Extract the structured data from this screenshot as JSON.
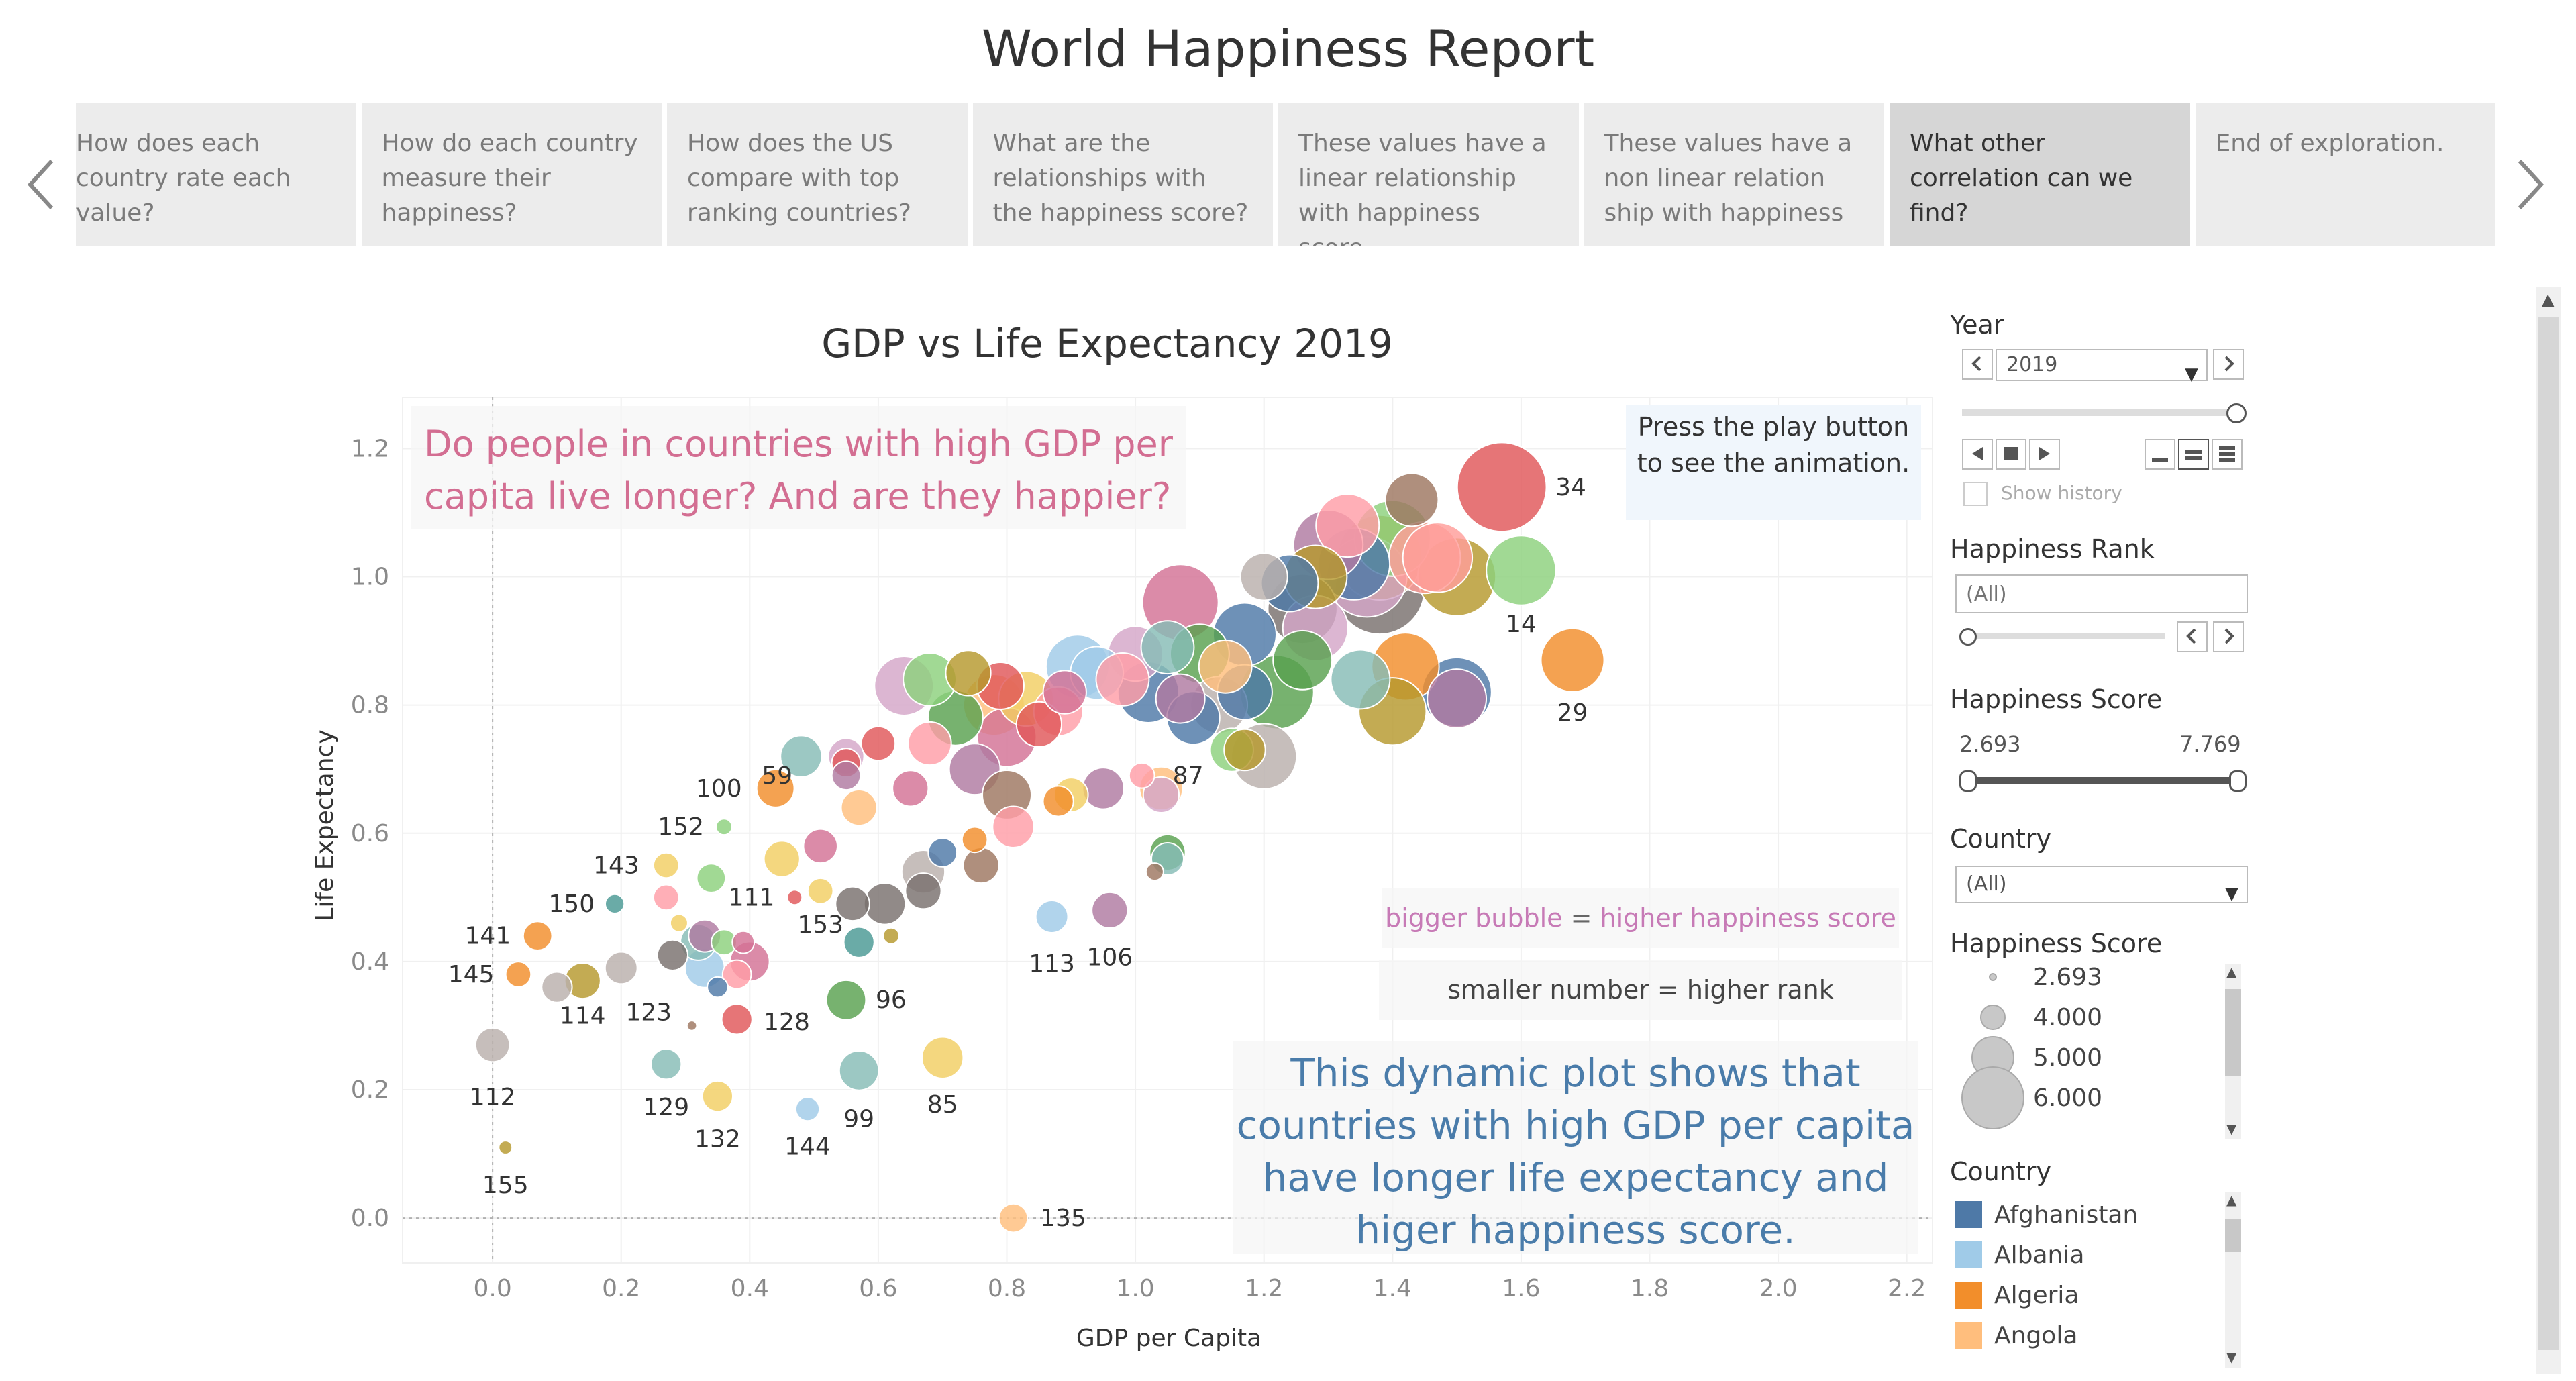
{
  "dashboard_title": "World Happiness Report",
  "story": {
    "prev_icon": "chevron-left-icon",
    "next_icon": "chevron-right-icon",
    "tabs": [
      {
        "label": "How does each country rate each value?"
      },
      {
        "label": "How do each country measure their happiness?"
      },
      {
        "label": "How does the US compare with top ranking countries?"
      },
      {
        "label": "What are the relationships with the happiness score?"
      },
      {
        "label": "These values have a linear relationship with happiness score."
      },
      {
        "label": "These values have a non linear relation ship with happiness"
      },
      {
        "label": "What other correlation can we find?",
        "active": true
      },
      {
        "label": "End of exploration."
      }
    ]
  },
  "annotations": {
    "question": "Do people in countries with high GDP per capita live longer? And are they happier?",
    "play_hint": "Press the play button to see the animation.",
    "bubble_note_a": "bigger bubble",
    "bubble_note_eq": " = ",
    "bubble_note_b": "higher happiness score",
    "rank_note": "smaller number = higher rank",
    "conclusion": "This dynamic plot shows that countries with high GDP per capita have longer life expectancy and higer happiness score."
  },
  "chart_data": {
    "type": "scatter",
    "title": "GDP vs Life Expectancy  2019",
    "xlabel": "GDP per Capita",
    "ylabel": "Life Expectancy",
    "xlim": [
      -0.14,
      2.24
    ],
    "ylim": [
      -0.07,
      1.28
    ],
    "x_ticks": [
      "0.0",
      "0.2",
      "0.4",
      "0.6",
      "0.8",
      "1.0",
      "1.2",
      "1.4",
      "1.6",
      "1.8",
      "2.0",
      "2.2"
    ],
    "y_ticks": [
      "0.0",
      "0.2",
      "0.4",
      "0.6",
      "0.8",
      "1.0",
      "1.2"
    ],
    "grid": true,
    "size_encoding": "Happiness Score",
    "color_encoding": "Country",
    "points": [
      {
        "x": 1.57,
        "y": 1.14,
        "score": 7.2,
        "color": "#e15759",
        "label": "34"
      },
      {
        "x": 1.6,
        "y": 1.01,
        "score": 6.3,
        "color": "#8cd17d",
        "label": "14"
      },
      {
        "x": 1.68,
        "y": 0.87,
        "score": 6.0,
        "color": "#f28e2b",
        "label": "29"
      },
      {
        "x": 1.43,
        "y": 1.12,
        "score": 5.5,
        "color": "#9d7660"
      },
      {
        "x": 1.33,
        "y": 1.08,
        "score": 6.0,
        "color": "#ff9da7"
      },
      {
        "x": 1.4,
        "y": 1.06,
        "score": 6.6,
        "color": "#8cd17d"
      },
      {
        "x": 1.45,
        "y": 1.03,
        "score": 6.4,
        "color": "#ff9d9a"
      },
      {
        "x": 1.36,
        "y": 1.0,
        "score": 6.8,
        "color": "#d4a6c8"
      },
      {
        "x": 1.38,
        "y": 0.98,
        "score": 7.2,
        "color": "#79706e"
      },
      {
        "x": 1.34,
        "y": 1.02,
        "score": 6.4,
        "color": "#4e79a7"
      },
      {
        "x": 1.3,
        "y": 1.05,
        "score": 6.3,
        "color": "#b07aa1"
      },
      {
        "x": 1.28,
        "y": 1.0,
        "score": 6.0,
        "color": "#b6992d"
      },
      {
        "x": 1.5,
        "y": 1.0,
        "score": 6.7,
        "color": "#b6992d"
      },
      {
        "x": 1.47,
        "y": 1.03,
        "score": 6.3,
        "color": "#ff9d9a"
      },
      {
        "x": 1.38,
        "y": 1.03,
        "score": 7.0,
        "color": "#b6992d"
      },
      {
        "x": 1.2,
        "y": 1.0,
        "score": 5.2,
        "color": "#bab0ac"
      },
      {
        "x": 1.24,
        "y": 0.99,
        "score": 5.7,
        "color": "#4e79a7"
      },
      {
        "x": 1.26,
        "y": 0.95,
        "score": 6.3,
        "color": "#79706e"
      },
      {
        "x": 1.28,
        "y": 0.92,
        "score": 6.1,
        "color": "#d4a6c8"
      },
      {
        "x": 1.17,
        "y": 0.91,
        "score": 6.0,
        "color": "#4e79a7"
      },
      {
        "x": 1.07,
        "y": 0.96,
        "score": 6.6,
        "color": "#d37295"
      },
      {
        "x": 1.35,
        "y": 0.84,
        "score": 5.8,
        "color": "#86bcb6"
      },
      {
        "x": 1.42,
        "y": 0.86,
        "score": 6.2,
        "color": "#f28e2b"
      },
      {
        "x": 1.5,
        "y": 0.82,
        "score": 6.3,
        "color": "#4e79a7"
      },
      {
        "x": 1.5,
        "y": 0.81,
        "score": 5.8,
        "color": "#b07aa1"
      },
      {
        "x": 1.4,
        "y": 0.79,
        "score": 6.2,
        "color": "#b6992d"
      },
      {
        "x": 1.26,
        "y": 0.87,
        "score": 5.8,
        "color": "#59a14f"
      },
      {
        "x": 1.22,
        "y": 0.82,
        "score": 6.5,
        "color": "#59a14f"
      },
      {
        "x": 1.17,
        "y": 0.82,
        "score": 5.6,
        "color": "#4e79a7"
      },
      {
        "x": 1.14,
        "y": 0.86,
        "score": 5.5,
        "color": "#ffbe7d"
      },
      {
        "x": 1.1,
        "y": 0.88,
        "score": 5.8,
        "color": "#59a14f"
      },
      {
        "x": 1.05,
        "y": 0.89,
        "score": 5.5,
        "color": "#86bcb6"
      },
      {
        "x": 1.0,
        "y": 0.88,
        "score": 5.6,
        "color": "#d4a6c8"
      },
      {
        "x": 0.91,
        "y": 0.86,
        "score": 6.0,
        "color": "#a0cbe8"
      },
      {
        "x": 0.94,
        "y": 0.85,
        "score": 5.5,
        "color": "#a0cbe8"
      },
      {
        "x": 0.98,
        "y": 0.84,
        "score": 5.5,
        "color": "#ff9da7"
      },
      {
        "x": 1.02,
        "y": 0.82,
        "score": 5.9,
        "color": "#4e79a7"
      },
      {
        "x": 1.07,
        "y": 0.81,
        "score": 5.3,
        "color": "#b07aa1"
      },
      {
        "x": 1.13,
        "y": 0.8,
        "score": 5.7,
        "color": "#bab0ac"
      },
      {
        "x": 1.09,
        "y": 0.78,
        "score": 5.5,
        "color": "#4e79a7"
      },
      {
        "x": 1.15,
        "y": 0.73,
        "score": 5.0,
        "color": "#8cd17d"
      },
      {
        "x": 1.2,
        "y": 0.72,
        "score": 6.1,
        "color": "#bab0ac"
      },
      {
        "x": 1.17,
        "y": 0.73,
        "score": 4.9,
        "color": "#b6992d"
      },
      {
        "x": 0.88,
        "y": 0.79,
        "score": 5.3,
        "color": "#ff9da7"
      },
      {
        "x": 0.83,
        "y": 0.81,
        "score": 5.6,
        "color": "#f1ce63"
      },
      {
        "x": 0.78,
        "y": 0.8,
        "score": 5.9,
        "color": "#ffbe7d"
      },
      {
        "x": 0.85,
        "y": 0.77,
        "score": 5.1,
        "color": "#e15759"
      },
      {
        "x": 0.89,
        "y": 0.82,
        "score": 5.0,
        "color": "#d37295"
      },
      {
        "x": 0.79,
        "y": 0.83,
        "score": 5.2,
        "color": "#e15759"
      },
      {
        "x": 0.74,
        "y": 0.85,
        "score": 5.1,
        "color": "#b6992d"
      },
      {
        "x": 0.68,
        "y": 0.84,
        "score": 5.5,
        "color": "#8cd17d"
      },
      {
        "x": 0.64,
        "y": 0.83,
        "score": 5.8,
        "color": "#d4a6c8"
      },
      {
        "x": 0.72,
        "y": 0.78,
        "score": 5.6,
        "color": "#59a14f"
      },
      {
        "x": 0.8,
        "y": 0.75,
        "score": 5.8,
        "color": "#d37295"
      },
      {
        "x": 0.75,
        "y": 0.7,
        "score": 5.4,
        "color": "#b07aa1"
      },
      {
        "x": 0.8,
        "y": 0.66,
        "score": 5.3,
        "color": "#9d7660"
      },
      {
        "x": 0.81,
        "y": 0.61,
        "score": 4.9,
        "color": "#ff9da7"
      },
      {
        "x": 0.68,
        "y": 0.74,
        "score": 5.0,
        "color": "#ff9da7"
      },
      {
        "x": 0.6,
        "y": 0.74,
        "score": 4.5,
        "color": "#e15759"
      },
      {
        "x": 0.55,
        "y": 0.72,
        "score": 4.6,
        "color": "#d4a6c8"
      },
      {
        "x": 0.48,
        "y": 0.72,
        "score": 4.9,
        "color": "#86bcb6"
      },
      {
        "x": 0.55,
        "y": 0.71,
        "score": 4.2,
        "color": "#e15759"
      },
      {
        "x": 0.65,
        "y": 0.67,
        "score": 4.6,
        "color": "#d37295"
      },
      {
        "x": 0.57,
        "y": 0.64,
        "score": 4.6,
        "color": "#ffbe7d"
      },
      {
        "x": 0.9,
        "y": 0.66,
        "score": 4.5,
        "color": "#f1ce63"
      },
      {
        "x": 0.95,
        "y": 0.67,
        "score": 4.9,
        "color": "#b07aa1"
      },
      {
        "x": 1.04,
        "y": 0.67,
        "score": 5.0,
        "color": "#ffbe7d"
      },
      {
        "x": 1.04,
        "y": 0.66,
        "score": 4.6,
        "color": "#d4a6c8"
      },
      {
        "x": 0.88,
        "y": 0.65,
        "score": 4.3,
        "color": "#f28e2b"
      },
      {
        "x": 1.05,
        "y": 0.57,
        "score": 4.6,
        "color": "#59a14f"
      },
      {
        "x": 1.05,
        "y": 0.56,
        "score": 4.4,
        "color": "#86bcb6"
      },
      {
        "x": 1.03,
        "y": 0.54,
        "score": 3.5,
        "color": "#9d7660"
      },
      {
        "x": 0.75,
        "y": 0.59,
        "score": 4.0,
        "color": "#f28e2b"
      },
      {
        "x": 0.76,
        "y": 0.55,
        "score": 4.6,
        "color": "#9d7660"
      },
      {
        "x": 0.7,
        "y": 0.57,
        "score": 4.2,
        "color": "#4e79a7"
      },
      {
        "x": 0.67,
        "y": 0.54,
        "score": 5.0,
        "color": "#bab0ac"
      },
      {
        "x": 0.67,
        "y": 0.51,
        "score": 4.6,
        "color": "#79706e"
      },
      {
        "x": 0.61,
        "y": 0.49,
        "score": 4.9,
        "color": "#79706e"
      },
      {
        "x": 0.56,
        "y": 0.49,
        "score": 4.5,
        "color": "#79706e"
      },
      {
        "x": 0.62,
        "y": 0.44,
        "score": 3.4,
        "color": "#b6992d"
      },
      {
        "x": 0.57,
        "y": 0.43,
        "score": 4.3,
        "color": "#499894"
      },
      {
        "x": 0.51,
        "y": 0.58,
        "score": 4.5,
        "color": "#d37295"
      },
      {
        "x": 0.45,
        "y": 0.56,
        "score": 4.6,
        "color": "#f1ce63"
      },
      {
        "x": 0.44,
        "y": 0.67,
        "score": 4.7,
        "color": "#f28e2b",
        "label": "100"
      },
      {
        "x": 0.36,
        "y": 0.61,
        "score": 3.4,
        "color": "#8cd17d",
        "label": "152"
      },
      {
        "x": 0.34,
        "y": 0.53,
        "score": 4.2,
        "color": "#8cd17d"
      },
      {
        "x": 0.27,
        "y": 0.55,
        "score": 4.0,
        "color": "#f1ce63",
        "label": "143"
      },
      {
        "x": 0.27,
        "y": 0.5,
        "score": 4.0,
        "color": "#ff9da7"
      },
      {
        "x": 0.19,
        "y": 0.49,
        "score": 3.6,
        "color": "#499894",
        "label": "150"
      },
      {
        "x": 0.47,
        "y": 0.5,
        "score": 3.3,
        "color": "#e15759",
        "label": "111"
      },
      {
        "x": 0.29,
        "y": 0.46,
        "score": 3.5,
        "color": "#f1ce63"
      },
      {
        "x": 0.32,
        "y": 0.43,
        "score": 4.6,
        "color": "#86bcb6"
      },
      {
        "x": 0.33,
        "y": 0.44,
        "score": 4.4,
        "color": "#b07aa1"
      },
      {
        "x": 0.36,
        "y": 0.43,
        "score": 4.0,
        "color": "#8cd17d"
      },
      {
        "x": 0.39,
        "y": 0.43,
        "score": 3.8,
        "color": "#d37295"
      },
      {
        "x": 0.28,
        "y": 0.41,
        "score": 4.3,
        "color": "#79706e"
      },
      {
        "x": 0.33,
        "y": 0.39,
        "score": 4.8,
        "color": "#a0cbe8"
      },
      {
        "x": 0.38,
        "y": 0.38,
        "score": 4.2,
        "color": "#ff9da7"
      },
      {
        "x": 0.4,
        "y": 0.4,
        "score": 4.8,
        "color": "#d37295"
      },
      {
        "x": 0.35,
        "y": 0.36,
        "score": 3.7,
        "color": "#4e79a7"
      },
      {
        "x": 0.2,
        "y": 0.39,
        "score": 4.4,
        "color": "#bab0ac"
      },
      {
        "x": 0.14,
        "y": 0.37,
        "score": 4.6,
        "color": "#b6992d",
        "label": "114"
      },
      {
        "x": 0.1,
        "y": 0.36,
        "score": 4.3,
        "color": "#bab0ac"
      },
      {
        "x": 0.07,
        "y": 0.44,
        "score": 4.2,
        "color": "#f28e2b",
        "label": "141"
      },
      {
        "x": 0.04,
        "y": 0.38,
        "score": 4.0,
        "color": "#f28e2b",
        "label": "145"
      },
      {
        "x": 0.0,
        "y": 0.27,
        "score": 4.5,
        "color": "#bab0ac",
        "label": "112"
      },
      {
        "x": 0.02,
        "y": 0.11,
        "score": 3.2,
        "color": "#b6992d",
        "label": "155"
      },
      {
        "x": 0.31,
        "y": 0.3,
        "score": 2.9,
        "color": "#9d7660",
        "label": "123"
      },
      {
        "x": 0.38,
        "y": 0.31,
        "score": 4.3,
        "color": "#e15759",
        "label": "128"
      },
      {
        "x": 0.27,
        "y": 0.24,
        "score": 4.3,
        "color": "#86bcb6",
        "label": "129"
      },
      {
        "x": 0.35,
        "y": 0.19,
        "score": 4.3,
        "color": "#f1ce63",
        "label": "132"
      },
      {
        "x": 0.49,
        "y": 0.17,
        "score": 3.9,
        "color": "#a0cbe8",
        "label": "144"
      },
      {
        "x": 0.55,
        "y": 0.34,
        "score": 4.8,
        "color": "#59a14f",
        "label": "96"
      },
      {
        "x": 0.57,
        "y": 0.23,
        "score": 4.8,
        "color": "#86bcb6",
        "label": "99"
      },
      {
        "x": 0.7,
        "y": 0.25,
        "score": 4.9,
        "color": "#f1ce63",
        "label": "85"
      },
      {
        "x": 0.81,
        "y": 0.0,
        "score": 4.2,
        "color": "#ffbe7d",
        "label": "135"
      },
      {
        "x": 0.87,
        "y": 0.47,
        "score": 4.4,
        "color": "#a0cbe8",
        "label": "113"
      },
      {
        "x": 0.96,
        "y": 0.48,
        "score": 4.6,
        "color": "#b07aa1",
        "label": "106"
      },
      {
        "x": 0.51,
        "y": 0.51,
        "score": 4.0,
        "color": "#f1ce63",
        "label": "153"
      },
      {
        "x": 0.55,
        "y": 0.69,
        "score": 4.2,
        "color": "#b07aa1",
        "label": "59"
      },
      {
        "x": 1.01,
        "y": 0.69,
        "score": 4.0,
        "color": "#ff9da7",
        "label": "87"
      }
    ]
  },
  "filters": {
    "year": {
      "label": "Year",
      "value": "2019",
      "show_history": "Show history"
    },
    "rank": {
      "label": "Happiness Rank",
      "placeholder": "(All)"
    },
    "score_range": {
      "label": "Happiness Score",
      "min": "2.693",
      "max": "7.769"
    },
    "country": {
      "label": "Country",
      "value": "(All)"
    }
  },
  "size_legend": {
    "title": "Happiness Score",
    "items": [
      {
        "label": "2.693",
        "score": 2.693
      },
      {
        "label": "4.000",
        "score": 4.0
      },
      {
        "label": "5.000",
        "score": 5.0
      },
      {
        "label": "6.000",
        "score": 6.0
      }
    ]
  },
  "color_legend": {
    "title": "Country",
    "items": [
      {
        "label": "Afghanistan",
        "color": "#4e79a7"
      },
      {
        "label": "Albania",
        "color": "#a0cbe8"
      },
      {
        "label": "Algeria",
        "color": "#f28e2b"
      },
      {
        "label": "Angola",
        "color": "#ffbe7d"
      }
    ]
  }
}
